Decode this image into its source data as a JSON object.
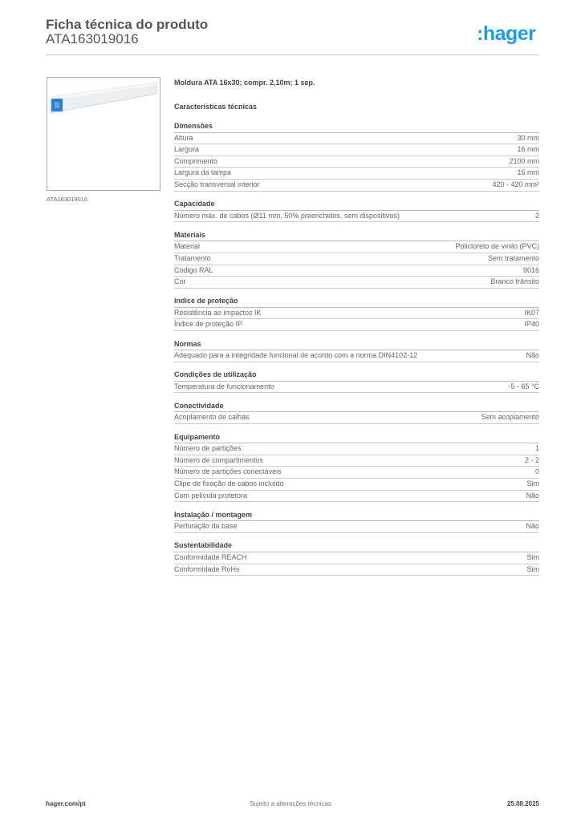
{
  "header": {
    "title": "Ficha técnica do produto",
    "code": "ATA163019016",
    "logo": "hager"
  },
  "image": {
    "caption": "ATA163019016"
  },
  "product_name": "Moldura ATA 16x30; compr. 2,10m; 1 sep.",
  "characteristics_title": "Características técnicas",
  "sections": [
    {
      "title": "Dimensões",
      "rows": [
        [
          "Altura",
          "30 mm"
        ],
        [
          "Largura",
          "16 mm"
        ],
        [
          "Comprimento",
          "2100 mm"
        ],
        [
          "Largura da tampa",
          "16 mm"
        ],
        [
          "Secção transversal interior",
          "420 - 420 mm²"
        ]
      ]
    },
    {
      "title": "Capacidade",
      "rows": [
        [
          "Número máx. de cabos (Ø11 mm, 50% preenchidos, sem dispositivos)",
          "2"
        ]
      ]
    },
    {
      "title": "Materiais",
      "rows": [
        [
          "Material",
          "Policloreto de vinilo (PVC)"
        ],
        [
          "Tratamento",
          "Sem tratamento"
        ],
        [
          "Código RAL",
          "9016"
        ],
        [
          "Cor",
          "Branco trânsito"
        ]
      ]
    },
    {
      "title": "indice de proteção",
      "rows": [
        [
          "Resistência ao impactos IK",
          "IK07"
        ],
        [
          "Índice de proteção IP",
          "IP40"
        ]
      ]
    },
    {
      "title": "Normas",
      "rows": [
        [
          "Adequado para a integridade funcional de acordo com a norma DIN4102-12",
          "Não"
        ]
      ]
    },
    {
      "title": "Condições de utilização",
      "rows": [
        [
          "Temperatura de funcionamento",
          "-5 - 65 °C"
        ]
      ]
    },
    {
      "title": "Conectividade",
      "rows": [
        [
          "Acoplamento de calhas",
          "Sem acoplamento"
        ]
      ]
    },
    {
      "title": "Equipamento",
      "rows": [
        [
          "Número de partições",
          "1"
        ],
        [
          "Número de compartimentos",
          "2 - 2"
        ],
        [
          "Número de partições conectáveis",
          "0"
        ],
        [
          "Clipe de fixação de cabos incluído",
          "Sim"
        ],
        [
          "Com película protetora",
          "Não"
        ]
      ]
    },
    {
      "title": "Instalação / montagem",
      "rows": [
        [
          "Perfuração da base",
          "Não"
        ]
      ]
    },
    {
      "title": "Sustentabilidade",
      "rows": [
        [
          "Conformidade REACH",
          "Sim"
        ],
        [
          "Conformidade RoHs",
          "Sim"
        ]
      ]
    }
  ],
  "footer": {
    "website": "hager.com/pt",
    "note": "Sujeito a alterações técnicas",
    "date": "25.08.2025"
  },
  "colors": {
    "brand": "#1aa0e0"
  }
}
